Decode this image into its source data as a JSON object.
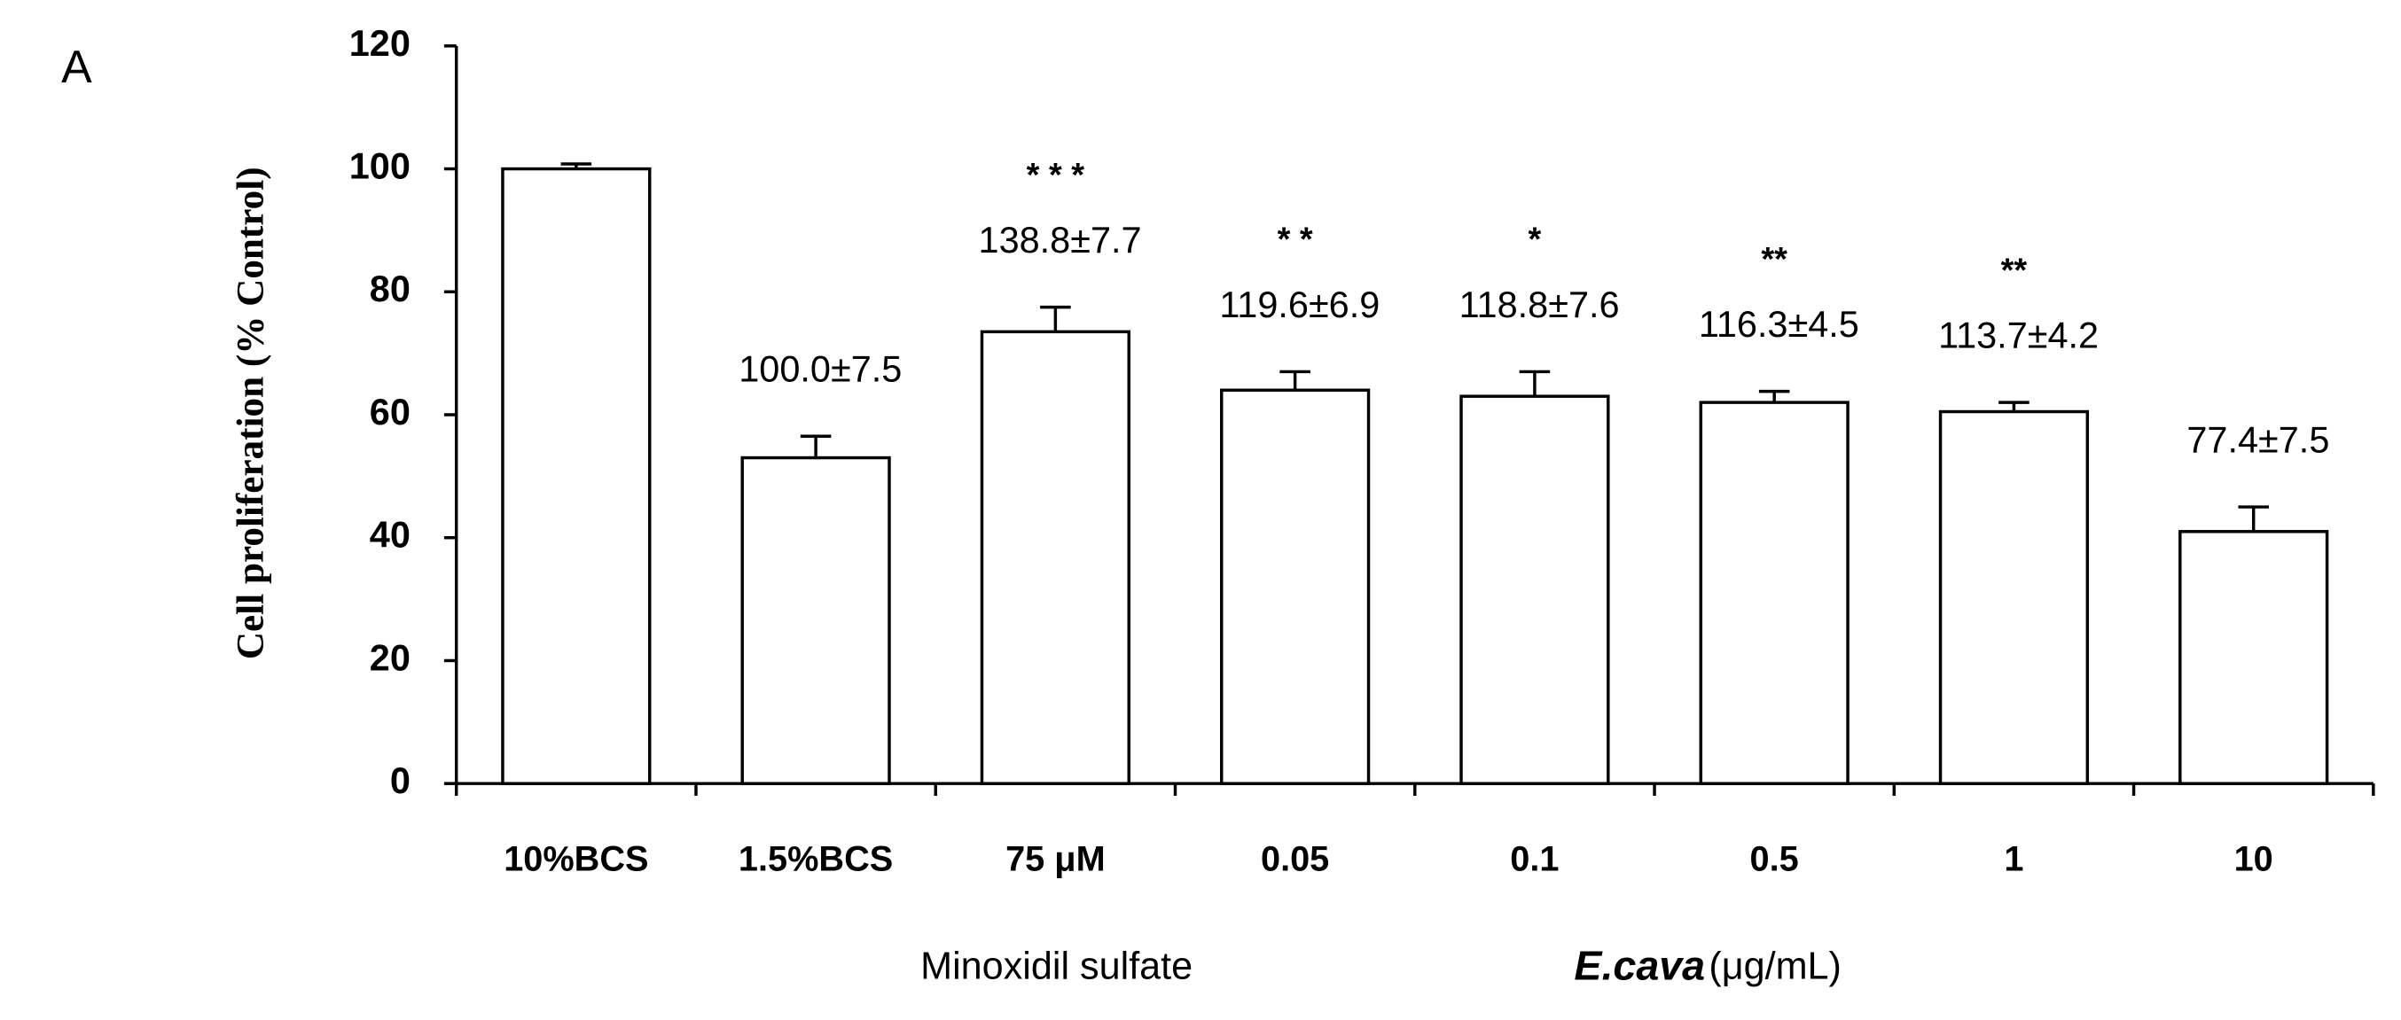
{
  "chart_data": {
    "type": "bar",
    "panel_label": "A",
    "y_label": "Cell proliferation (% Control)",
    "categories": [
      "10%BCS",
      "1.5%BCS",
      "75 μM",
      "0.05",
      "0.1",
      "0.5",
      "1",
      "10"
    ],
    "values": [
      100,
      53,
      73.5,
      64,
      63,
      62,
      60.5,
      41
    ],
    "errors": [
      0.8,
      3.5,
      4,
      3,
      4,
      1.8,
      1.5,
      4
    ],
    "annotations": [
      null,
      "100.0±7.5",
      "138.8±7.7",
      "119.6±6.9",
      "118.8±7.6",
      "116.3±4.5",
      "113.7±4.2",
      "77.4±7.5"
    ],
    "significance": [
      null,
      null,
      "* * *",
      "* *",
      "*",
      "**",
      "**",
      null
    ],
    "x_group_labels": [
      "Minoxidil sulfate",
      "E.cava",
      "(μg/mL)"
    ],
    "color": "#ffffff",
    "edge_color": "#000000",
    "ylim": [
      0,
      120
    ],
    "yticks": [
      0,
      20,
      40,
      60,
      80,
      100,
      120
    ],
    "grid": false
  }
}
